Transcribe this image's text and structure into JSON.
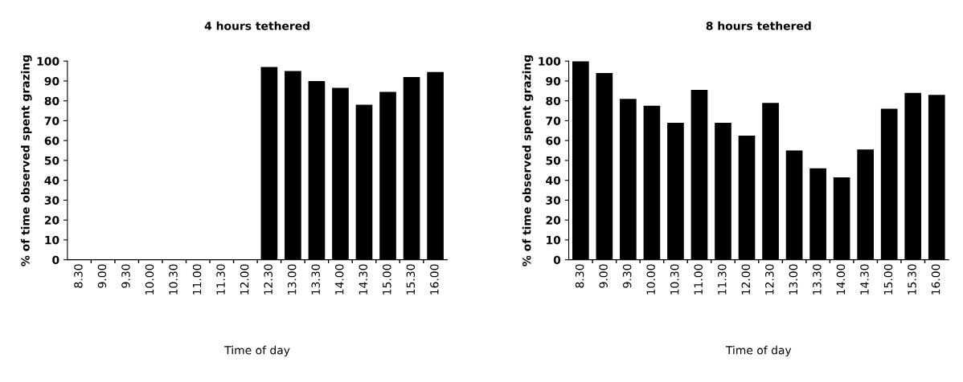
{
  "chart_data": [
    {
      "type": "bar",
      "title": "4 hours tethered",
      "xlabel": "Time of day",
      "ylabel": "% of time observed spent grazing",
      "categories": [
        "8.30",
        "9.00",
        "9.30",
        "10.00",
        "10.30",
        "11.00",
        "11.30",
        "12.00",
        "12.30",
        "13.00",
        "13.30",
        "14.00",
        "14.30",
        "15.00",
        "15.30",
        "16.00"
      ],
      "values": [
        0,
        0,
        0,
        0,
        0,
        0,
        0,
        0,
        97,
        95,
        90,
        86.5,
        78,
        84.5,
        92,
        94.5
      ],
      "color": "#000000",
      "ylim": [
        0,
        100
      ],
      "yticks": [
        0,
        10,
        20,
        30,
        40,
        50,
        60,
        70,
        80,
        90,
        100
      ],
      "grid": false
    },
    {
      "type": "bar",
      "title": "8 hours tethered",
      "xlabel": "Time of day",
      "ylabel": "% of time observed spent grazing",
      "categories": [
        "8.30",
        "9.00",
        "9.30",
        "10.00",
        "10.30",
        "11.00",
        "11.30",
        "12.00",
        "12.30",
        "13.00",
        "13.30",
        "14.00",
        "14.30",
        "15.00",
        "15.30",
        "16.00"
      ],
      "values": [
        100,
        94,
        81,
        77.5,
        69,
        85.5,
        69,
        62.5,
        79,
        55,
        46,
        41.5,
        55.5,
        76,
        84,
        83
      ],
      "color": "#000000",
      "ylim": [
        0,
        100
      ],
      "yticks": [
        0,
        10,
        20,
        30,
        40,
        50,
        60,
        70,
        80,
        90,
        100
      ],
      "grid": false
    }
  ]
}
